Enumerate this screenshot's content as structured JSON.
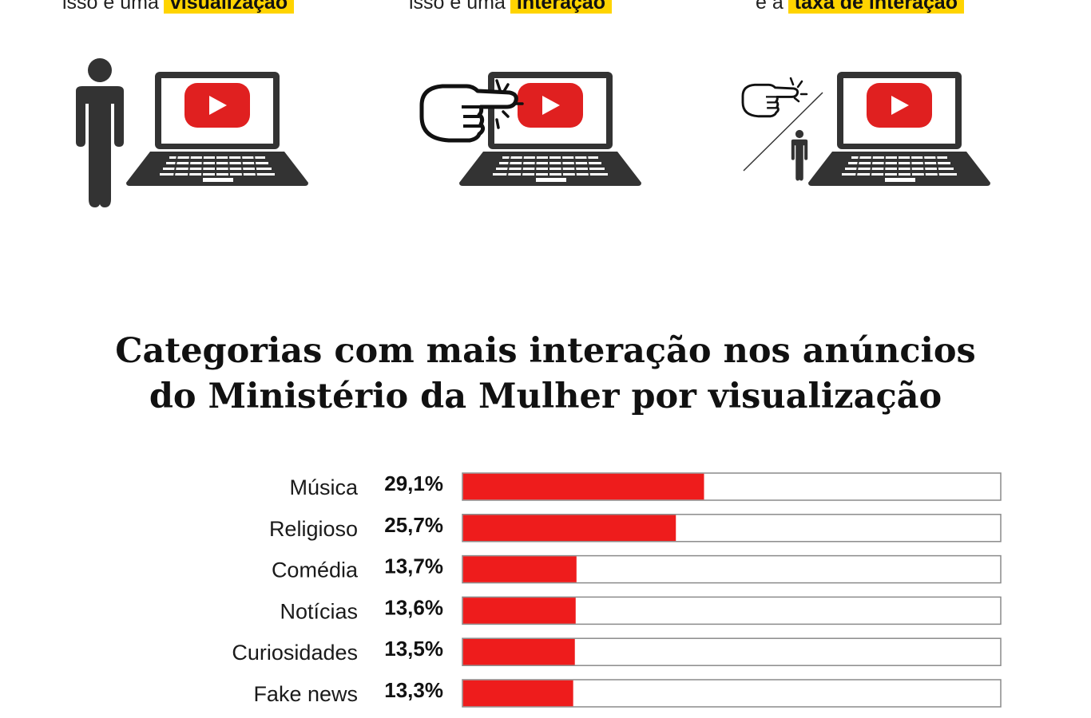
{
  "captions": [
    {
      "prefix": "isso é uma",
      "highlight": "visualização"
    },
    {
      "prefix": "isso é uma",
      "highlight": "interação"
    },
    {
      "prefix": "é a",
      "highlight": "taxa de interação"
    }
  ],
  "icons": [
    "person-icon",
    "laptop-youtube-icon",
    "pointing-hand-icon",
    "laptop-youtube-icon",
    "pointing-hand-icon",
    "person-icon",
    "laptop-youtube-icon"
  ],
  "colors": {
    "bar": "#ee1c1c",
    "highlight": "#ffd400",
    "youtube": "#e02020",
    "icon": "#333333"
  },
  "chart_data": {
    "type": "bar",
    "orientation": "horizontal",
    "title_lines": [
      "Categorias com mais interação nos anúncios",
      "do Ministério da Mulher por visualização"
    ],
    "categories": [
      "Música",
      "Religioso",
      "Comédia",
      "Notícias",
      "Curiosidades",
      "Fake news"
    ],
    "values": [
      29.1,
      25.7,
      13.7,
      13.6,
      13.5,
      13.3
    ],
    "labels": [
      "29,1%",
      "25,7%",
      "13,7%",
      "13,6%",
      "13,5%",
      "13,3%"
    ],
    "xlim": [
      0,
      65
    ],
    "grid": false,
    "legend": "none"
  }
}
